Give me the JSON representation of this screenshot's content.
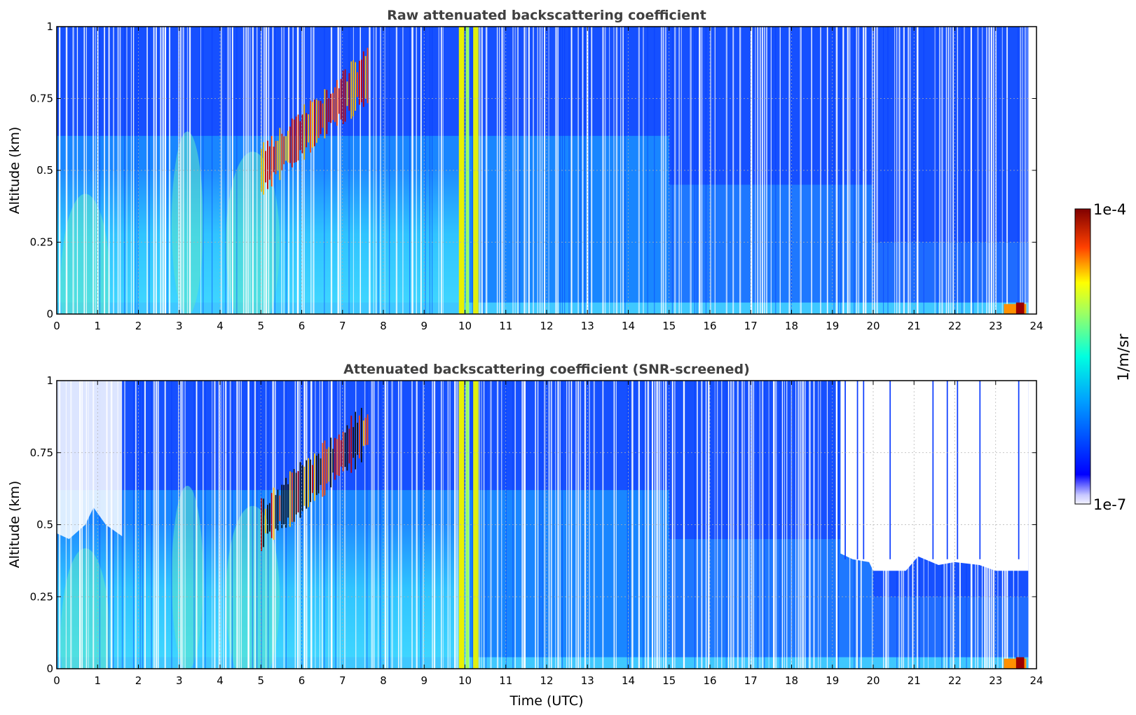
{
  "chart_data": [
    {
      "type": "heatmap",
      "title": "Raw attenuated backscattering coefficient",
      "xlabel": "",
      "ylabel": "Altitude (km)",
      "xlim": [
        0,
        24
      ],
      "ylim": [
        0,
        1
      ],
      "xticks": [
        "0",
        "1",
        "2",
        "3",
        "4",
        "5",
        "6",
        "7",
        "8",
        "9",
        "10",
        "11",
        "12",
        "13",
        "14",
        "15",
        "16",
        "17",
        "18",
        "19",
        "20",
        "21",
        "22",
        "23",
        "24"
      ],
      "yticks": [
        "0",
        "0.25",
        "0.5",
        "0.75",
        "1"
      ],
      "grid": true,
      "colorscale": "jet",
      "data_extent_hours": [
        0,
        23.8
      ],
      "features": [
        {
          "name": "near-surface haze layer",
          "time_range": [
            0,
            10
          ],
          "altitude_range": [
            0,
            0.55
          ],
          "level": "green-cyan"
        },
        {
          "name": "rising aerosol plume",
          "time_range": [
            5.0,
            7.6
          ],
          "altitude_range": [
            0.45,
            0.9
          ],
          "level": "red"
        },
        {
          "name": "vertical column",
          "time_range": [
            9.8,
            10.35
          ],
          "altitude_range": [
            0,
            1
          ],
          "level": "yellow"
        },
        {
          "name": "low signal upper region",
          "time_range": [
            0,
            23.8
          ],
          "altitude_range": [
            0.6,
            1.0
          ],
          "level": "blue"
        },
        {
          "name": "surface high backscatter",
          "time_range": [
            23.2,
            23.8
          ],
          "altitude_range": [
            0,
            0.04
          ],
          "level": "dark red"
        }
      ]
    },
    {
      "type": "heatmap",
      "title": "Attenuated backscattering coefficient (SNR-screened)",
      "xlabel": "Time (UTC)",
      "ylabel": "Altitude (km)",
      "xlim": [
        0,
        24
      ],
      "ylim": [
        0,
        1
      ],
      "xticks": [
        "0",
        "1",
        "2",
        "3",
        "4",
        "5",
        "6",
        "7",
        "8",
        "9",
        "10",
        "11",
        "12",
        "13",
        "14",
        "15",
        "16",
        "17",
        "18",
        "19",
        "20",
        "21",
        "22",
        "23",
        "24"
      ],
      "yticks": [
        "0",
        "0.25",
        "0.5",
        "0.75",
        "1"
      ],
      "grid": true,
      "colorscale": "jet",
      "data_extent_hours": [
        0,
        23.8
      ],
      "screened_ceiling_km": [
        {
          "t": 0.0,
          "alt": 0.47
        },
        {
          "t": 0.3,
          "alt": 0.45
        },
        {
          "t": 0.7,
          "alt": 0.5
        },
        {
          "t": 0.9,
          "alt": 0.56
        },
        {
          "t": 1.2,
          "alt": 0.5
        },
        {
          "t": 1.6,
          "alt": 0.46
        },
        {
          "t": 19.2,
          "alt": 0.4
        },
        {
          "t": 19.5,
          "alt": 0.38
        },
        {
          "t": 19.9,
          "alt": 0.37
        },
        {
          "t": 20.0,
          "alt": 0.34
        },
        {
          "t": 20.8,
          "alt": 0.34
        },
        {
          "t": 21.1,
          "alt": 0.39
        },
        {
          "t": 21.6,
          "alt": 0.36
        },
        {
          "t": 22.0,
          "alt": 0.37
        },
        {
          "t": 22.6,
          "alt": 0.36
        },
        {
          "t": 23.0,
          "alt": 0.34
        },
        {
          "t": 23.8,
          "alt": 0.34
        }
      ]
    }
  ],
  "colorbar": {
    "label": "1/m/sr",
    "max_label": "1e-4",
    "min_label": "1e-7",
    "scale": "log",
    "range": [
      1e-07,
      0.0001
    ],
    "colors": [
      "#ffffff",
      "#00008f",
      "#0000ff",
      "#00ffff",
      "#ffff00",
      "#ff0000",
      "#800000"
    ]
  }
}
